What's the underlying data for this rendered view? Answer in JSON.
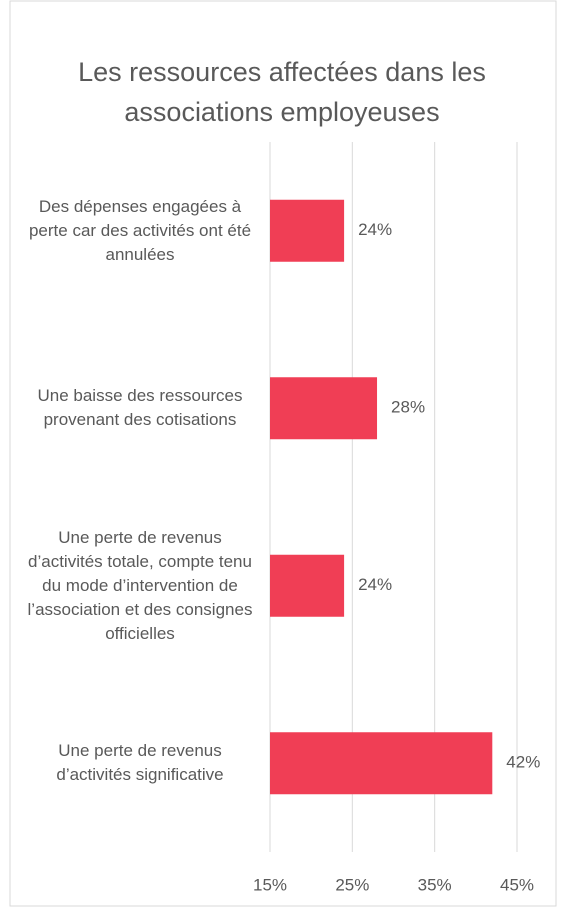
{
  "chart_data": {
    "type": "bar",
    "orientation": "horizontal",
    "title": "Les ressources affectées dans les associations employeuses",
    "categories": [
      "Des dépenses engagées à perte car des activités ont été annulées",
      "Une baisse des ressources provenant des cotisations",
      "Une perte de revenus d’activités totale, compte tenu du mode d’intervention de l’association et des consignes officielles",
      "Une perte de revenus d’activités significative"
    ],
    "values": [
      24,
      28,
      24,
      42
    ],
    "value_labels": [
      "24%",
      "28%",
      "24%",
      "42%"
    ],
    "color": "#f03e55",
    "xlim": [
      15,
      45
    ],
    "xticks": [
      {
        "value": 15,
        "label": "15%"
      },
      {
        "value": 25,
        "label": "25%"
      },
      {
        "value": 35,
        "label": "35%"
      },
      {
        "value": 45,
        "label": "45%"
      }
    ],
    "grid": true
  }
}
